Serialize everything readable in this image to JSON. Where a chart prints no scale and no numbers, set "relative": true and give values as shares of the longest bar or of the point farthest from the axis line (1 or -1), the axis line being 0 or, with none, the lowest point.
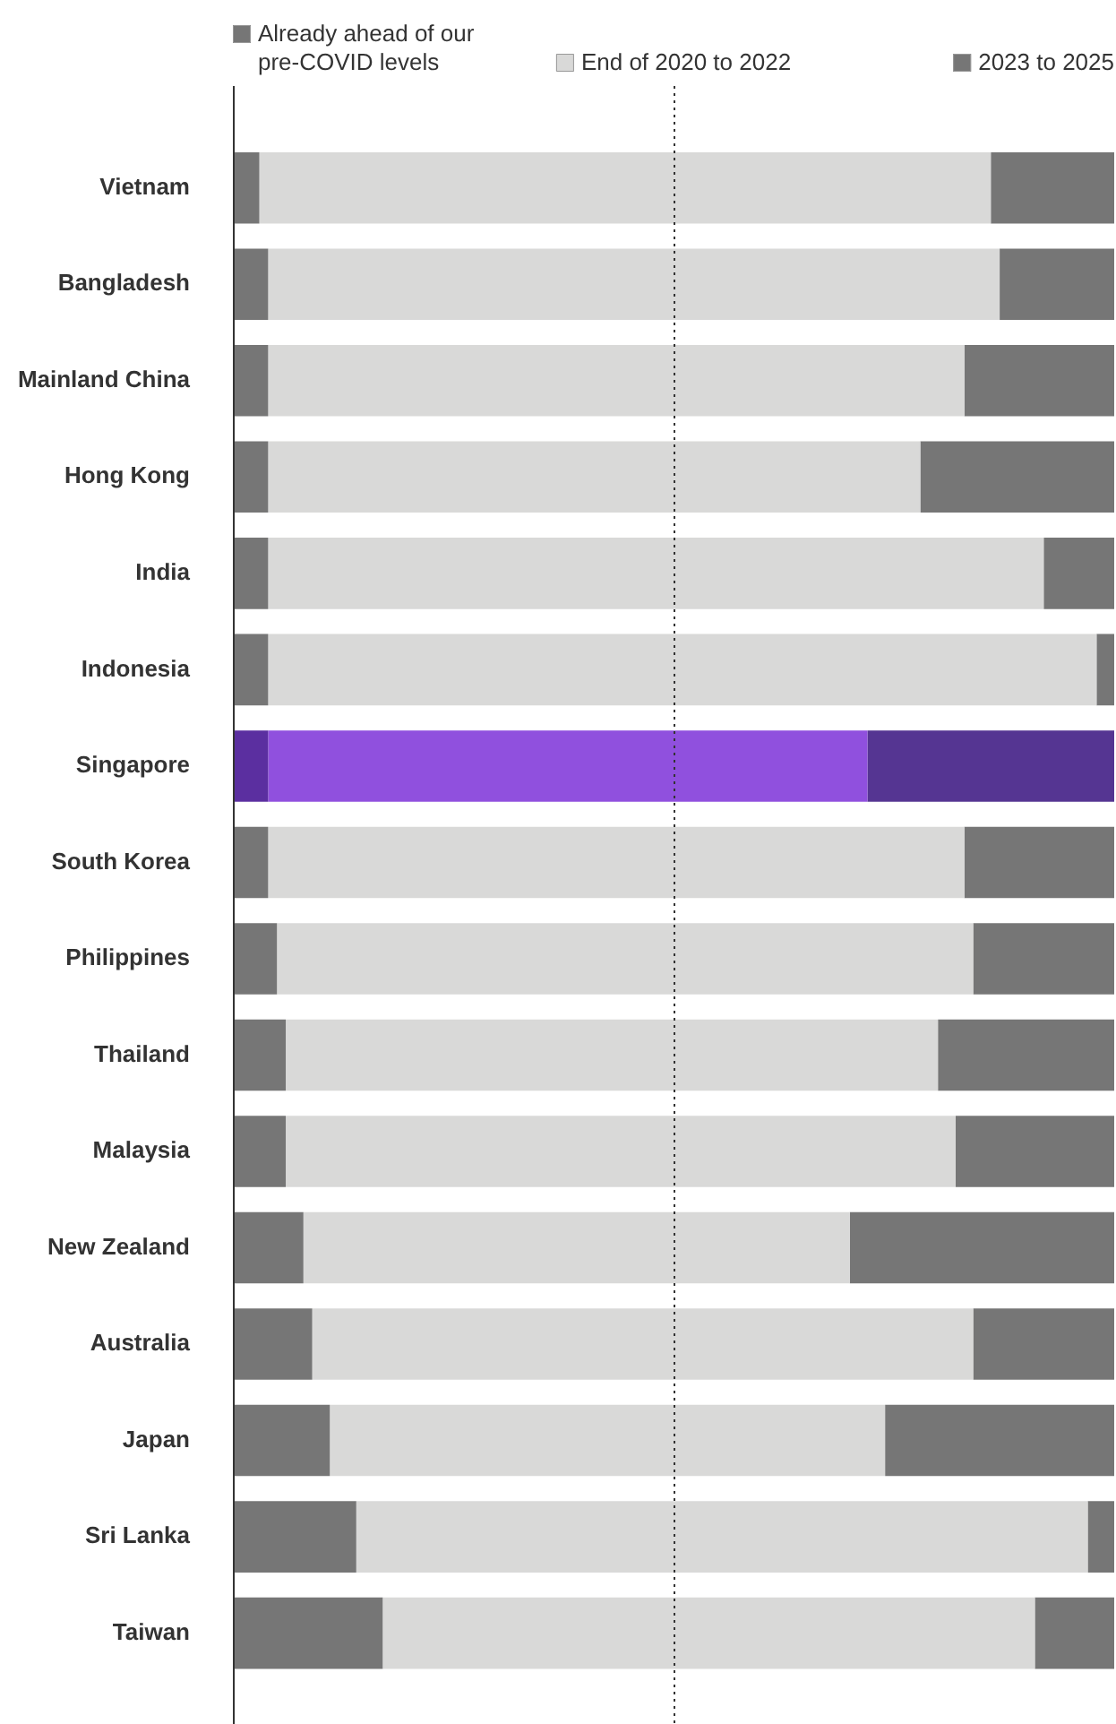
{
  "chart_data": {
    "type": "bar",
    "orientation": "horizontal",
    "stacked": true,
    "relative": true,
    "legend": "top",
    "categories": [
      "Vietnam",
      "Bangladesh",
      "Mainland China",
      "Hong Kong",
      "India",
      "Indonesia",
      "Singapore",
      "South Korea",
      "Philippines",
      "Thailand",
      "Malaysia",
      "New Zealand",
      "Australia",
      "Japan",
      "Sri Lanka",
      "Taiwan"
    ],
    "series": [
      {
        "name": "Already ahead of our pre-COVID levels",
        "color": "#767676",
        "colors": [
          "#767676",
          "#767676",
          "#767676",
          "#767676",
          "#767676",
          "#767676",
          "#5b2fa0",
          "#767676",
          "#767676",
          "#767676",
          "#767676",
          "#767676",
          "#767676",
          "#767676",
          "#767676",
          "#767676"
        ],
        "values": [
          0.03,
          0.04,
          0.04,
          0.04,
          0.04,
          0.04,
          0.04,
          0.04,
          0.05,
          0.06,
          0.06,
          0.08,
          0.09,
          0.11,
          0.14,
          0.17
        ]
      },
      {
        "name": "End of 2020 to 2022",
        "color": "#d9d9d8",
        "colors": [
          "#d9d9d8",
          "#d9d9d8",
          "#d9d9d8",
          "#d9d9d8",
          "#d9d9d8",
          "#d9d9d8",
          "#9050de",
          "#d9d9d8",
          "#d9d9d8",
          "#d9d9d8",
          "#d9d9d8",
          "#d9d9d8",
          "#d9d9d8",
          "#d9d9d8",
          "#d9d9d8",
          "#d9d9d8"
        ],
        "values": [
          0.83,
          0.83,
          0.79,
          0.74,
          0.88,
          0.94,
          0.68,
          0.79,
          0.79,
          0.74,
          0.76,
          0.62,
          0.75,
          0.63,
          0.83,
          0.74
        ]
      },
      {
        "name": "2023 to 2025",
        "color": "#767676",
        "colors": [
          "#767676",
          "#767676",
          "#767676",
          "#767676",
          "#767676",
          "#767676",
          "#553592",
          "#767676",
          "#767676",
          "#767676",
          "#767676",
          "#767676",
          "#767676",
          "#767676",
          "#767676",
          "#767676"
        ],
        "values": [
          0.14,
          0.13,
          0.17,
          0.22,
          0.08,
          0.02,
          0.28,
          0.17,
          0.16,
          0.2,
          0.18,
          0.3,
          0.16,
          0.26,
          0.03,
          0.09
        ]
      }
    ],
    "ref_lines": [
      {
        "axis": "x",
        "value": 0.5,
        "label": null,
        "color": "#333333",
        "line_style": "dotted"
      }
    ]
  }
}
